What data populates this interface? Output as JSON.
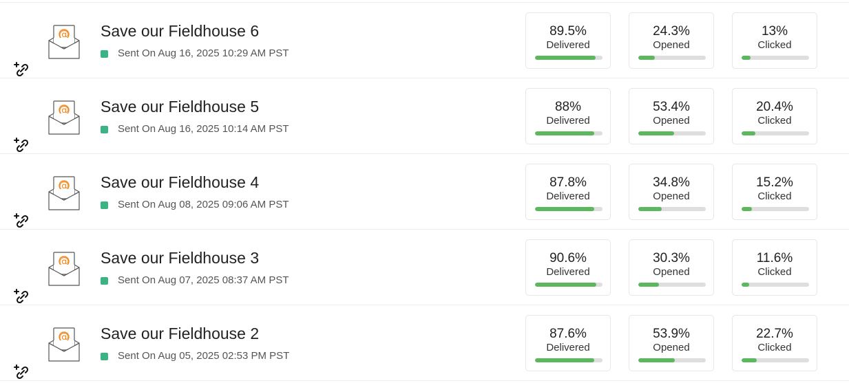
{
  "colors": {
    "accent": "#5cb85c",
    "status": "#3bb384",
    "track": "#dedede"
  },
  "campaigns": [
    {
      "title": "Save our Fieldhouse 6",
      "sent": "Sent On Aug 16, 2025 10:29 AM PST",
      "stats": [
        {
          "value": "89.5%",
          "label": "Delivered",
          "pct": 89.5
        },
        {
          "value": "24.3%",
          "label": "Opened",
          "pct": 24.3
        },
        {
          "value": "13%",
          "label": "Clicked",
          "pct": 13
        }
      ]
    },
    {
      "title": "Save our Fieldhouse 5",
      "sent": "Sent On Aug 16, 2025 10:14 AM PST",
      "stats": [
        {
          "value": "88%",
          "label": "Delivered",
          "pct": 88
        },
        {
          "value": "53.4%",
          "label": "Opened",
          "pct": 53.4
        },
        {
          "value": "20.4%",
          "label": "Clicked",
          "pct": 20.4
        }
      ]
    },
    {
      "title": "Save our Fieldhouse 4",
      "sent": "Sent On Aug 08, 2025 09:06 AM PST",
      "stats": [
        {
          "value": "87.8%",
          "label": "Delivered",
          "pct": 87.8
        },
        {
          "value": "34.8%",
          "label": "Opened",
          "pct": 34.8
        },
        {
          "value": "15.2%",
          "label": "Clicked",
          "pct": 15.2
        }
      ]
    },
    {
      "title": "Save our Fieldhouse 3",
      "sent": "Sent On Aug 07, 2025 08:37 AM PST",
      "stats": [
        {
          "value": "90.6%",
          "label": "Delivered",
          "pct": 90.6
        },
        {
          "value": "30.3%",
          "label": "Opened",
          "pct": 30.3
        },
        {
          "value": "11.6%",
          "label": "Clicked",
          "pct": 11.6
        }
      ]
    },
    {
      "title": "Save our Fieldhouse 2",
      "sent": "Sent On Aug 05, 2025 02:53 PM PST",
      "stats": [
        {
          "value": "87.6%",
          "label": "Delivered",
          "pct": 87.6
        },
        {
          "value": "53.9%",
          "label": "Opened",
          "pct": 53.9
        },
        {
          "value": "22.7%",
          "label": "Clicked",
          "pct": 22.7
        }
      ]
    }
  ]
}
